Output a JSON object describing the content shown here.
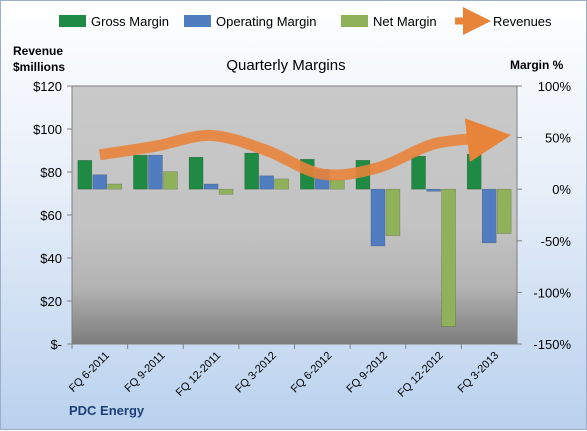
{
  "chart_data": {
    "type": "bar",
    "title": "Quarterly Margins",
    "company": "PDC Energy",
    "y_left": {
      "label_line1": "Revenue",
      "label_line2": "$millions",
      "ticks": [
        "$120",
        "$100",
        "$80",
        "$60",
        "$40",
        "$20",
        "$-"
      ],
      "range": [
        0,
        120
      ]
    },
    "y_right": {
      "label": "Margin %",
      "ticks": [
        "100%",
        "50%",
        "0%",
        "-50%",
        "-100%",
        "-150%"
      ],
      "range": [
        -150,
        100
      ]
    },
    "categories": [
      "FQ 6-2011",
      "FQ 9-2011",
      "FQ 12-2011",
      "FQ 3-2012",
      "FQ 6-2012",
      "FQ 9-2012",
      "FQ 12-2012",
      "FQ 3-2013"
    ],
    "series": [
      {
        "name": "Gross Margin",
        "kind": "bar",
        "axis": "right",
        "color": "#1e8a43",
        "values": [
          28,
          33,
          31,
          35,
          29,
          28,
          32,
          34
        ]
      },
      {
        "name": "Operating Margin",
        "kind": "bar",
        "axis": "right",
        "color": "#4f7dbf",
        "values": [
          14,
          33,
          5,
          13,
          19,
          -55,
          -2,
          -52
        ]
      },
      {
        "name": "Net Margin",
        "kind": "bar",
        "axis": "right",
        "color": "#8fb15a",
        "values": [
          5,
          17,
          -5,
          10,
          9,
          -45,
          -133,
          -43
        ]
      },
      {
        "name": "Revenues",
        "kind": "line",
        "axis": "left",
        "color": "#e8833a",
        "values": [
          88,
          92,
          97,
          90,
          79,
          82,
          93,
          96
        ]
      }
    ],
    "legend_position": "top",
    "grid": false
  }
}
